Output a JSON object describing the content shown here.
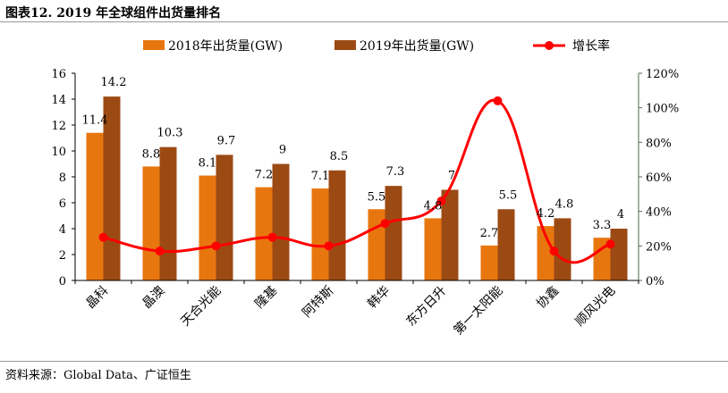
{
  "header": {
    "title": "图表12.  2019 年全球组件出货量排名"
  },
  "footer": {
    "source": "资料来源：Global Data、广证恒生"
  },
  "colors": {
    "series2018": "#E8760F",
    "series2019": "#9C4A14",
    "growth": "#FF0000",
    "rightAxis": "#4B6B4B"
  },
  "chart_data": {
    "type": "bar",
    "title": "2019 年全球组件出货量排名",
    "categories": [
      "晶科",
      "晶澳",
      "天合光能",
      "隆基",
      "阿特斯",
      "韩华",
      "东方日升",
      "第一太阳能",
      "协鑫",
      "顺风光电"
    ],
    "series": [
      {
        "name": "2018年出货量(GW)",
        "type": "bar",
        "axis": "left",
        "values": [
          11.4,
          8.8,
          8.1,
          7.2,
          7.1,
          5.5,
          4.8,
          2.7,
          4.2,
          3.3
        ],
        "labels": [
          "11.4",
          "8.8",
          "8.1",
          "7.2",
          "7.1",
          "5.5",
          "4.8",
          "2.7",
          "4.2",
          "3.3"
        ]
      },
      {
        "name": "2019年出货量(GW)",
        "type": "bar",
        "axis": "left",
        "values": [
          14.2,
          10.3,
          9.7,
          9.0,
          8.5,
          7.3,
          7.0,
          5.5,
          4.8,
          4.0
        ],
        "labels": [
          "14.2",
          "10.3",
          "9.7",
          "9",
          "8.5",
          "7.3",
          "7",
          "5.5",
          "4.8",
          "4"
        ]
      },
      {
        "name": "增长率",
        "type": "line",
        "axis": "right",
        "values": [
          25,
          17,
          20,
          25,
          20,
          33,
          46,
          104,
          17,
          21
        ]
      }
    ],
    "y_left": {
      "min": 0,
      "max": 16,
      "ticks": [
        0,
        2,
        4,
        6,
        8,
        10,
        12,
        14,
        16
      ]
    },
    "y_right": {
      "min": 0,
      "max": 120,
      "ticks": [
        "0%",
        "20%",
        "40%",
        "60%",
        "80%",
        "100%",
        "120%"
      ]
    },
    "legend_position": "top"
  }
}
